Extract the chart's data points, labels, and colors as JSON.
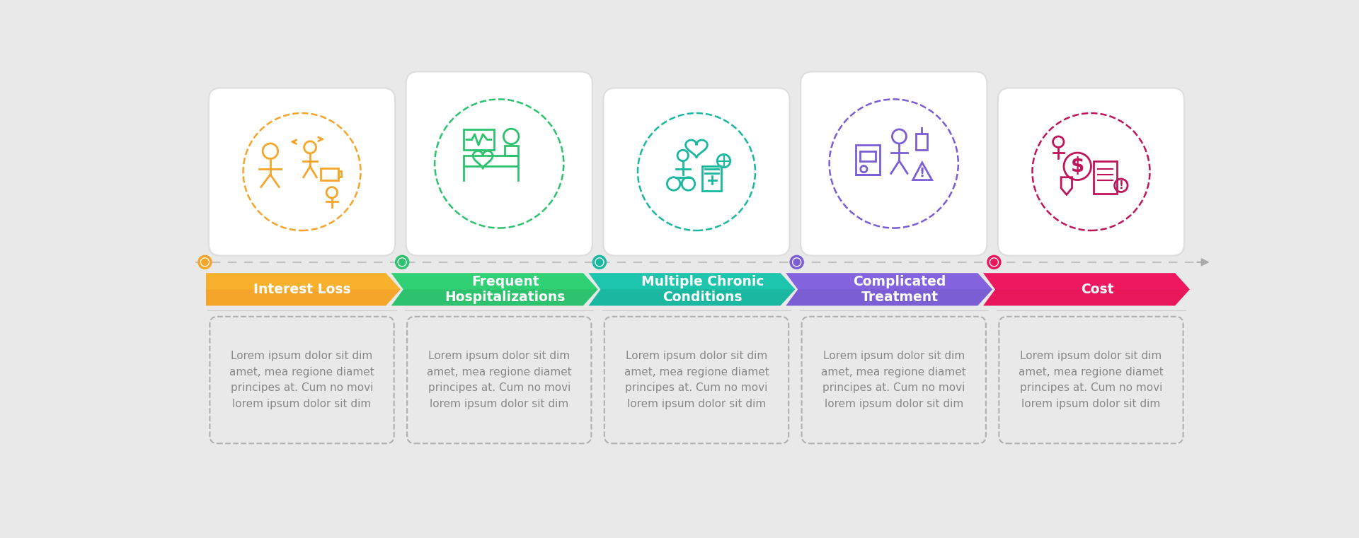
{
  "bg_color": "#e9e9e9",
  "steps": [
    {
      "title": "Interest Loss",
      "color": "#f5a52a",
      "dot_color": "#f5a52a",
      "icon_color": "#f5a52a",
      "text": "Lorem ipsum dolor sit dim\namet, mea regione diamet\nprincipes at. Cum no movi\nlorem ipsum dolor sit dim"
    },
    {
      "title": "Frequent\nHospitalizations",
      "color": "#2dc26d",
      "dot_color": "#2dc26d",
      "icon_color": "#2dc26d",
      "text": "Lorem ipsum dolor sit dim\namet, mea regione diamet\nprincipes at. Cum no movi\nlorem ipsum dolor sit dim"
    },
    {
      "title": "Multiple Chronic\nConditions",
      "color": "#1ab8a0",
      "dot_color": "#1ab8a0",
      "icon_color": "#1ab8a0",
      "text": "Lorem ipsum dolor sit dim\namet, mea regione diamet\nprincipes at. Cum no movi\nlorem ipsum dolor sit dim"
    },
    {
      "title": "Complicated\nTreatment",
      "color": "#7b5dd4",
      "dot_color": "#7b5dd4",
      "icon_color": "#7b5dd4",
      "text": "Lorem ipsum dolor sit dim\namet, mea regione diamet\nprincipes at. Cum no movi\nlorem ipsum dolor sit dim"
    },
    {
      "title": "Cost",
      "color": "#e8175a",
      "dot_color": "#e8175a",
      "icon_color": "#c0145a",
      "text": "Lorem ipsum dolor sit dim\namet, mea regione diamet\nprincipes at. Cum no movi\nlorem ipsum dolor sit dim"
    }
  ]
}
